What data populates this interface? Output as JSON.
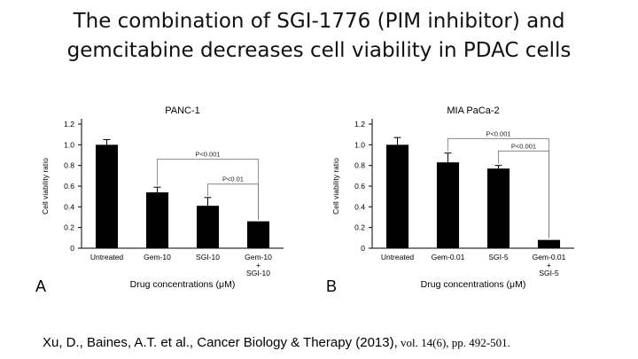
{
  "slide": {
    "title_line1": "The combination of SGI-1776 (PIM inhibitor) and",
    "title_line2": "gemcitabine decreases cell viability in PDAC cells",
    "citation_main": "Xu, D., Baines, A.T.  et al., Cancer Biology & Therapy  (2013),",
    "citation_vol": " vol. 14(6), pp. 492-501."
  },
  "chart_data": [
    {
      "type": "bar",
      "panel": "A",
      "title": "PANC-1",
      "xlabel": "Drug concentrations (μM)",
      "ylabel": "Cell viability ratio",
      "ylim": [
        0,
        1.2
      ],
      "yticks": [
        "0",
        "0.2",
        "0.4",
        "0.6",
        "0.8",
        "1.0",
        "1.2"
      ],
      "categories": [
        "Untreated",
        "Gem-10",
        "SGI-10",
        "Gem-10 + SGI-10"
      ],
      "category_lines": [
        [
          "Untreated"
        ],
        [
          "Gem-10"
        ],
        [
          "SGI-10"
        ],
        [
          "Gem-10",
          "+",
          "SGI-10"
        ]
      ],
      "values": [
        1.0,
        0.54,
        0.41,
        0.26
      ],
      "errors": [
        0.05,
        0.05,
        0.08,
        0.0
      ],
      "bar_color": "#000000",
      "grid": false,
      "annotations": [
        {
          "label": "P<0.001",
          "from": 1,
          "to": 3,
          "y": 0.86
        },
        {
          "label": "P<0.01",
          "from": 2,
          "to": 3,
          "y": 0.62
        }
      ]
    },
    {
      "type": "bar",
      "panel": "B",
      "title": "MIA PaCa-2",
      "xlabel": "Drug concentrations (μM)",
      "ylabel": "Cell viability ratio",
      "ylim": [
        0,
        1.2
      ],
      "yticks": [
        "0",
        "0.2",
        "0.4",
        "0.6",
        "0.8",
        "1.0",
        "1.2"
      ],
      "categories": [
        "Untreated",
        "Gem-0.01",
        "SGI-5",
        "Gem-0.01 + SGI-5"
      ],
      "category_lines": [
        [
          "Untreated"
        ],
        [
          "Gem-0.01"
        ],
        [
          "SGI-5"
        ],
        [
          "Gem-0.01",
          "+",
          "SGI-5"
        ]
      ],
      "values": [
        1.0,
        0.83,
        0.77,
        0.08
      ],
      "errors": [
        0.07,
        0.09,
        0.03,
        0.0
      ],
      "bar_color": "#000000",
      "grid": false,
      "annotations": [
        {
          "label": "P<0.001",
          "from": 1,
          "to": 3,
          "y": 1.06
        },
        {
          "label": "P<0.001",
          "from": 2,
          "to": 3,
          "y": 0.94
        }
      ]
    }
  ]
}
